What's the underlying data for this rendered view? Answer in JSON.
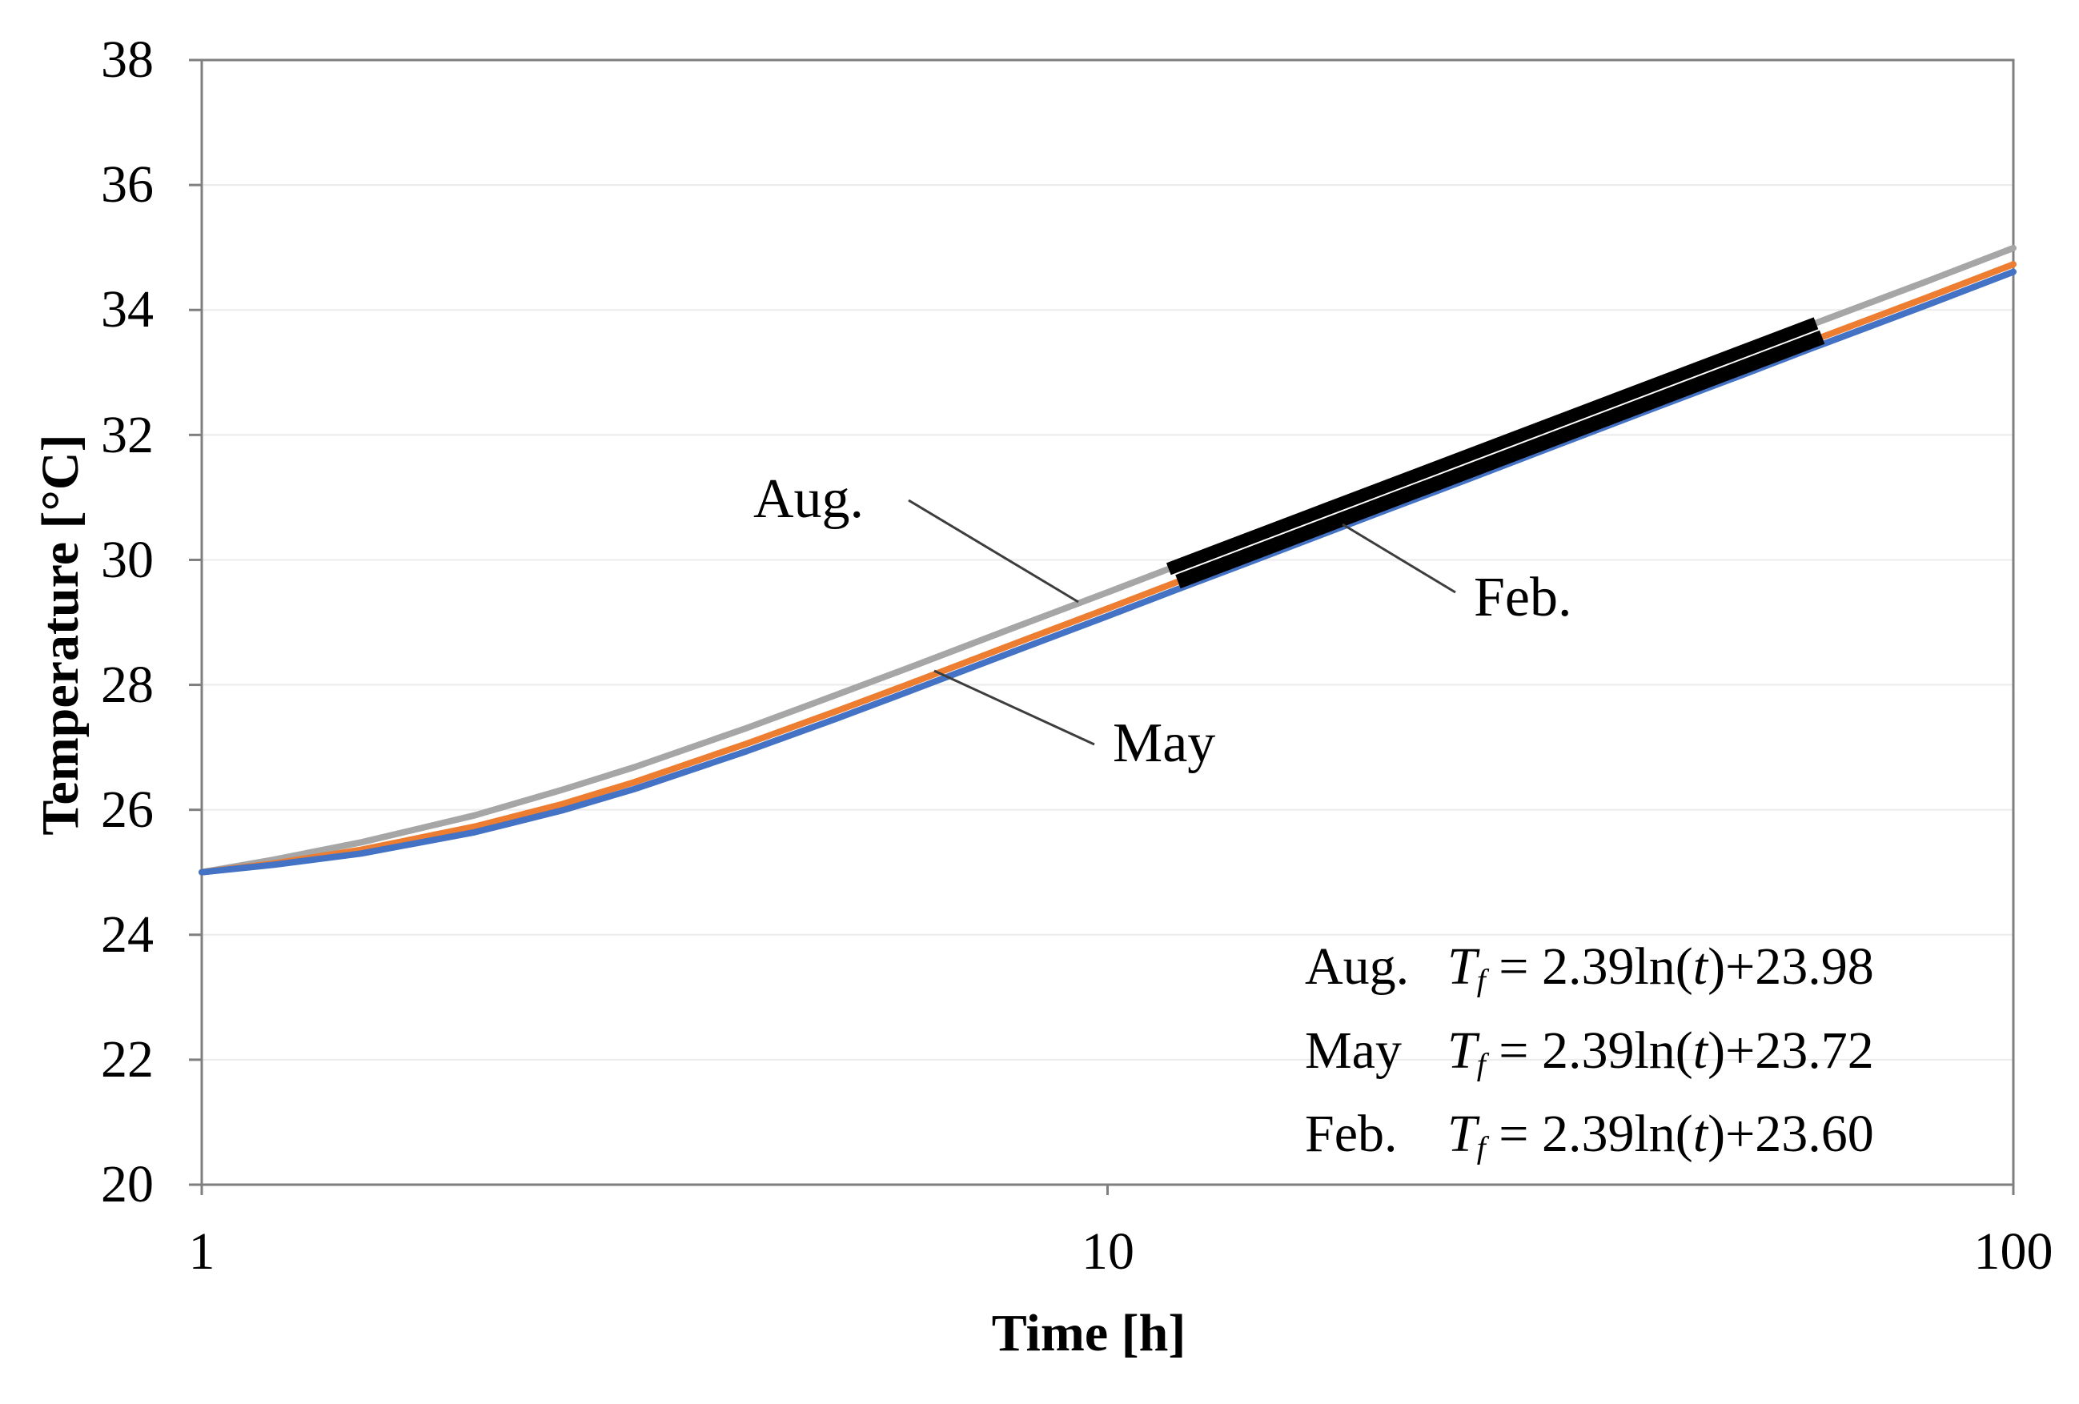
{
  "axes": {
    "y": {
      "title": "Temperature [°C]",
      "ticks": [
        "38",
        "36",
        "34",
        "32",
        "30",
        "28",
        "26",
        "24",
        "22",
        "20"
      ],
      "range": [
        20,
        38
      ]
    },
    "x": {
      "title": "Time [h]",
      "ticks": [
        "1",
        "10",
        "100"
      ],
      "range": [
        1,
        100
      ],
      "scale": "log"
    }
  },
  "annotations": {
    "aug": "Aug.",
    "may": "May",
    "feb": "Feb."
  },
  "equations": [
    {
      "label": "Aug.",
      "T": "T",
      "sub": "f",
      "eq": " = 2.39ln(",
      "var": "t",
      "rest": ")+23.98"
    },
    {
      "label": "May",
      "T": "T",
      "sub": "f",
      "eq": " = 2.39ln(",
      "var": "t",
      "rest": ")+23.72"
    },
    {
      "label": "Feb.",
      "T": "T",
      "sub": "f",
      "eq": " = 2.39ln(",
      "var": "t",
      "rest": ")+23.60"
    }
  ],
  "chart_data": {
    "type": "line",
    "title": "",
    "xlabel": "Time [h]",
    "ylabel": "Temperature [°C]",
    "xscale": "log",
    "xlim": [
      1,
      100
    ],
    "ylim": [
      20,
      38
    ],
    "grid": "horizontal",
    "gridlines": [
      22,
      24,
      26,
      28,
      30,
      32,
      34,
      36
    ],
    "legend_position": "none",
    "x": [
      1,
      1.2,
      1.5,
      2,
      2.5,
      3,
      4,
      5,
      6,
      8,
      10,
      12,
      15,
      20,
      25,
      30,
      40,
      50,
      60,
      80,
      100
    ],
    "series": [
      {
        "name": "Aug.",
        "color": "#A6A6A6",
        "fit": "Tf = 2.39ln(t)+23.98",
        "values": [
          25.0,
          25.2,
          25.48,
          25.91,
          26.32,
          26.68,
          27.31,
          27.83,
          28.26,
          28.95,
          29.48,
          29.92,
          30.45,
          31.14,
          31.67,
          32.11,
          32.8,
          33.33,
          33.77,
          34.45,
          34.99
        ]
      },
      {
        "name": "May",
        "color": "#ED7D31",
        "fit": "Tf = 2.39ln(t)+23.72",
        "values": [
          25.0,
          25.14,
          25.36,
          25.73,
          26.09,
          26.44,
          27.06,
          27.57,
          28.0,
          28.69,
          29.22,
          29.66,
          30.19,
          30.88,
          31.41,
          31.85,
          32.54,
          33.07,
          33.51,
          34.19,
          34.73
        ]
      },
      {
        "name": "Feb.",
        "color": "#4472C4",
        "fit": "Tf = 2.39ln(t)+23.60",
        "values": [
          25.0,
          25.12,
          25.3,
          25.64,
          25.99,
          26.33,
          26.94,
          27.45,
          27.88,
          28.57,
          29.1,
          29.54,
          30.07,
          30.76,
          31.29,
          31.73,
          32.42,
          32.95,
          33.39,
          34.07,
          34.61
        ]
      }
    ],
    "fit_segments": [
      {
        "name": "aug-fit-segment",
        "a": 2.39,
        "b": 23.98,
        "t_start": 11.68,
        "t_end": 60.55,
        "color": "#000000",
        "width": 16
      },
      {
        "name": "may-feb-fit-segment",
        "a": 2.39,
        "b": 23.72,
        "t_start": 11.96,
        "t_end": 61.5,
        "color": "#000000",
        "width": 18
      }
    ]
  },
  "colors": {
    "border": "#7F7F7F",
    "grid": "#EBEBEB",
    "tick": "#7F7F7F",
    "leader": "#3D3D3D",
    "background": "#FFFFFF"
  }
}
